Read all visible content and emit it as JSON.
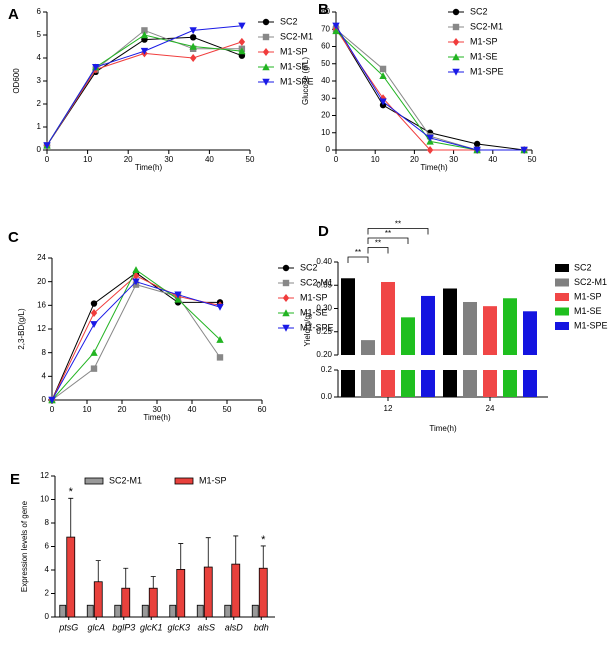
{
  "chart_data": [
    {
      "type": "line",
      "panel": "A",
      "xlabel": "Time(h)",
      "ylabel": "OD600",
      "x": [
        0,
        12,
        24,
        36,
        48
      ],
      "xlim": [
        0,
        50
      ],
      "xticks": [
        0,
        10,
        20,
        30,
        40,
        50
      ],
      "ylim": [
        0,
        6
      ],
      "yticks": [
        0,
        1,
        2,
        3,
        4,
        5,
        6
      ],
      "series": [
        {
          "name": "SC2",
          "color": "#000000",
          "marker": "circle",
          "values": [
            0.2,
            3.4,
            4.8,
            4.9,
            4.1
          ]
        },
        {
          "name": "SC2-M1",
          "color": "#888888",
          "marker": "square",
          "values": [
            0.2,
            3.5,
            5.2,
            4.4,
            4.4
          ]
        },
        {
          "name": "M1-SP",
          "color": "#f03c3c",
          "marker": "diamond",
          "values": [
            0.2,
            3.5,
            4.2,
            4.0,
            4.7
          ]
        },
        {
          "name": "M1-SE",
          "color": "#22b422",
          "marker": "triangle",
          "values": [
            0.2,
            3.6,
            5.0,
            4.5,
            4.3
          ]
        },
        {
          "name": "M1-SPE",
          "color": "#1a1ae6",
          "marker": "triangle-down",
          "values": [
            0.2,
            3.6,
            4.3,
            5.2,
            5.4
          ]
        }
      ]
    },
    {
      "type": "line",
      "panel": "B",
      "xlabel": "Time(h)",
      "ylabel": "Glucose (g/L)",
      "x": [
        0,
        12,
        24,
        36,
        48
      ],
      "xlim": [
        0,
        50
      ],
      "xticks": [
        0,
        10,
        20,
        30,
        40,
        50
      ],
      "ylim": [
        0,
        80
      ],
      "yticks": [
        0,
        10,
        20,
        30,
        40,
        50,
        60,
        70,
        80
      ],
      "series": [
        {
          "name": "SC2",
          "color": "#000000",
          "marker": "circle",
          "values": [
            71,
            26,
            10,
            3.5,
            0
          ]
        },
        {
          "name": "SC2-M1",
          "color": "#888888",
          "marker": "square",
          "values": [
            70,
            47,
            8,
            0,
            0
          ]
        },
        {
          "name": "M1-SP",
          "color": "#f03c3c",
          "marker": "diamond",
          "values": [
            70,
            30,
            0,
            0,
            0
          ]
        },
        {
          "name": "M1-SE",
          "color": "#22b422",
          "marker": "triangle",
          "values": [
            69,
            43,
            5,
            0,
            0
          ]
        },
        {
          "name": "M1-SPE",
          "color": "#1a1ae6",
          "marker": "triangle-down",
          "values": [
            72,
            28,
            7,
            0,
            0
          ]
        }
      ]
    },
    {
      "type": "line",
      "panel": "C",
      "xlabel": "Time(h)",
      "ylabel": "2,3-BD(g/L)",
      "x": [
        0,
        12,
        24,
        36,
        48
      ],
      "xlim": [
        0,
        60
      ],
      "xticks": [
        0,
        10,
        20,
        30,
        40,
        50,
        60
      ],
      "ylim": [
        0,
        24
      ],
      "yticks": [
        0,
        4,
        8,
        12,
        16,
        20,
        24
      ],
      "series": [
        {
          "name": "SC2",
          "color": "#000000",
          "marker": "circle",
          "values": [
            0,
            16.3,
            21.5,
            16.5,
            16.5
          ]
        },
        {
          "name": "SC2-M1",
          "color": "#888888",
          "marker": "square",
          "values": [
            0,
            5.3,
            19.5,
            17.5,
            7.2
          ]
        },
        {
          "name": "M1-SP",
          "color": "#f03c3c",
          "marker": "diamond",
          "values": [
            0,
            14.7,
            21,
            17.5,
            16
          ]
        },
        {
          "name": "M1-SE",
          "color": "#22b422",
          "marker": "triangle",
          "values": [
            0,
            8,
            22,
            17,
            10.2
          ]
        },
        {
          "name": "M1-SPE",
          "color": "#1a1ae6",
          "marker": "triangle-down",
          "values": [
            0,
            12.8,
            20,
            17.8,
            15.7
          ]
        }
      ]
    },
    {
      "type": "broken-bar",
      "panel": "D",
      "xlabel": "Time(h)",
      "ylabel": "Yield(g/g)",
      "categories": [
        "12",
        "24"
      ],
      "ylim": [
        0.2,
        0.4
      ],
      "yticks": [
        {
          "value": 0.2,
          "label": "0.20"
        },
        0.25,
        {
          "value": 0.3,
          "label": "0.30"
        },
        0.35,
        {
          "value": 0.4,
          "label": "0.40"
        }
      ],
      "y2lim": [
        0,
        0.2
      ],
      "y2ticks": [
        {
          "value": 0,
          "label": "0.0"
        },
        0.2
      ],
      "series": [
        {
          "name": "SC2",
          "color": "#000000",
          "values": [
            0.365,
            0.343
          ]
        },
        {
          "name": "SC2-M1",
          "color": "#808080",
          "values": [
            0.232,
            0.314
          ]
        },
        {
          "name": "M1-SP",
          "color": "#f04646",
          "values": [
            0.357,
            0.305
          ]
        },
        {
          "name": "M1-SE",
          "color": "#1fbf1f",
          "values": [
            0.281,
            0.322
          ]
        },
        {
          "name": "M1-SPE",
          "color": "#1414e0",
          "values": [
            0.327,
            0.294
          ]
        }
      ],
      "significance": [
        {
          "text": "**",
          "category": "12",
          "from": "SC2",
          "to": "SC2-M1"
        },
        {
          "text": "**",
          "category": "12",
          "from": "SC2-M1",
          "to": "M1-SP"
        },
        {
          "text": "**",
          "category": "12",
          "from": "SC2-M1",
          "to": "M1-SE"
        },
        {
          "text": "**",
          "category": "12",
          "from": "SC2-M1",
          "to": "M1-SPE"
        }
      ]
    },
    {
      "type": "bar",
      "panel": "E",
      "ylabel": "Expression levels of gene",
      "categories": [
        "ptsG",
        "glcA",
        "bglP3",
        "glcK1",
        "glcK3",
        "alsS",
        "alsD",
        "bdh"
      ],
      "ylim": [
        0,
        12
      ],
      "yticks": [
        0,
        2,
        4,
        6,
        8,
        10,
        12
      ],
      "series": [
        {
          "name": "SC2-M1",
          "color": "#999999",
          "values": [
            1,
            1,
            1,
            1,
            1,
            1,
            1,
            1
          ]
        },
        {
          "name": "M1-SP",
          "color": "#e8413c",
          "values": [
            6.8,
            3.0,
            2.45,
            2.45,
            4.05,
            4.25,
            4.5,
            4.15
          ],
          "errors": [
            3.3,
            1.8,
            1.7,
            1.0,
            2.2,
            2.5,
            2.4,
            1.9
          ]
        }
      ],
      "annotations": [
        {
          "text": "*",
          "category": "ptsG"
        },
        {
          "text": "*",
          "category": "bdh"
        }
      ]
    }
  ]
}
